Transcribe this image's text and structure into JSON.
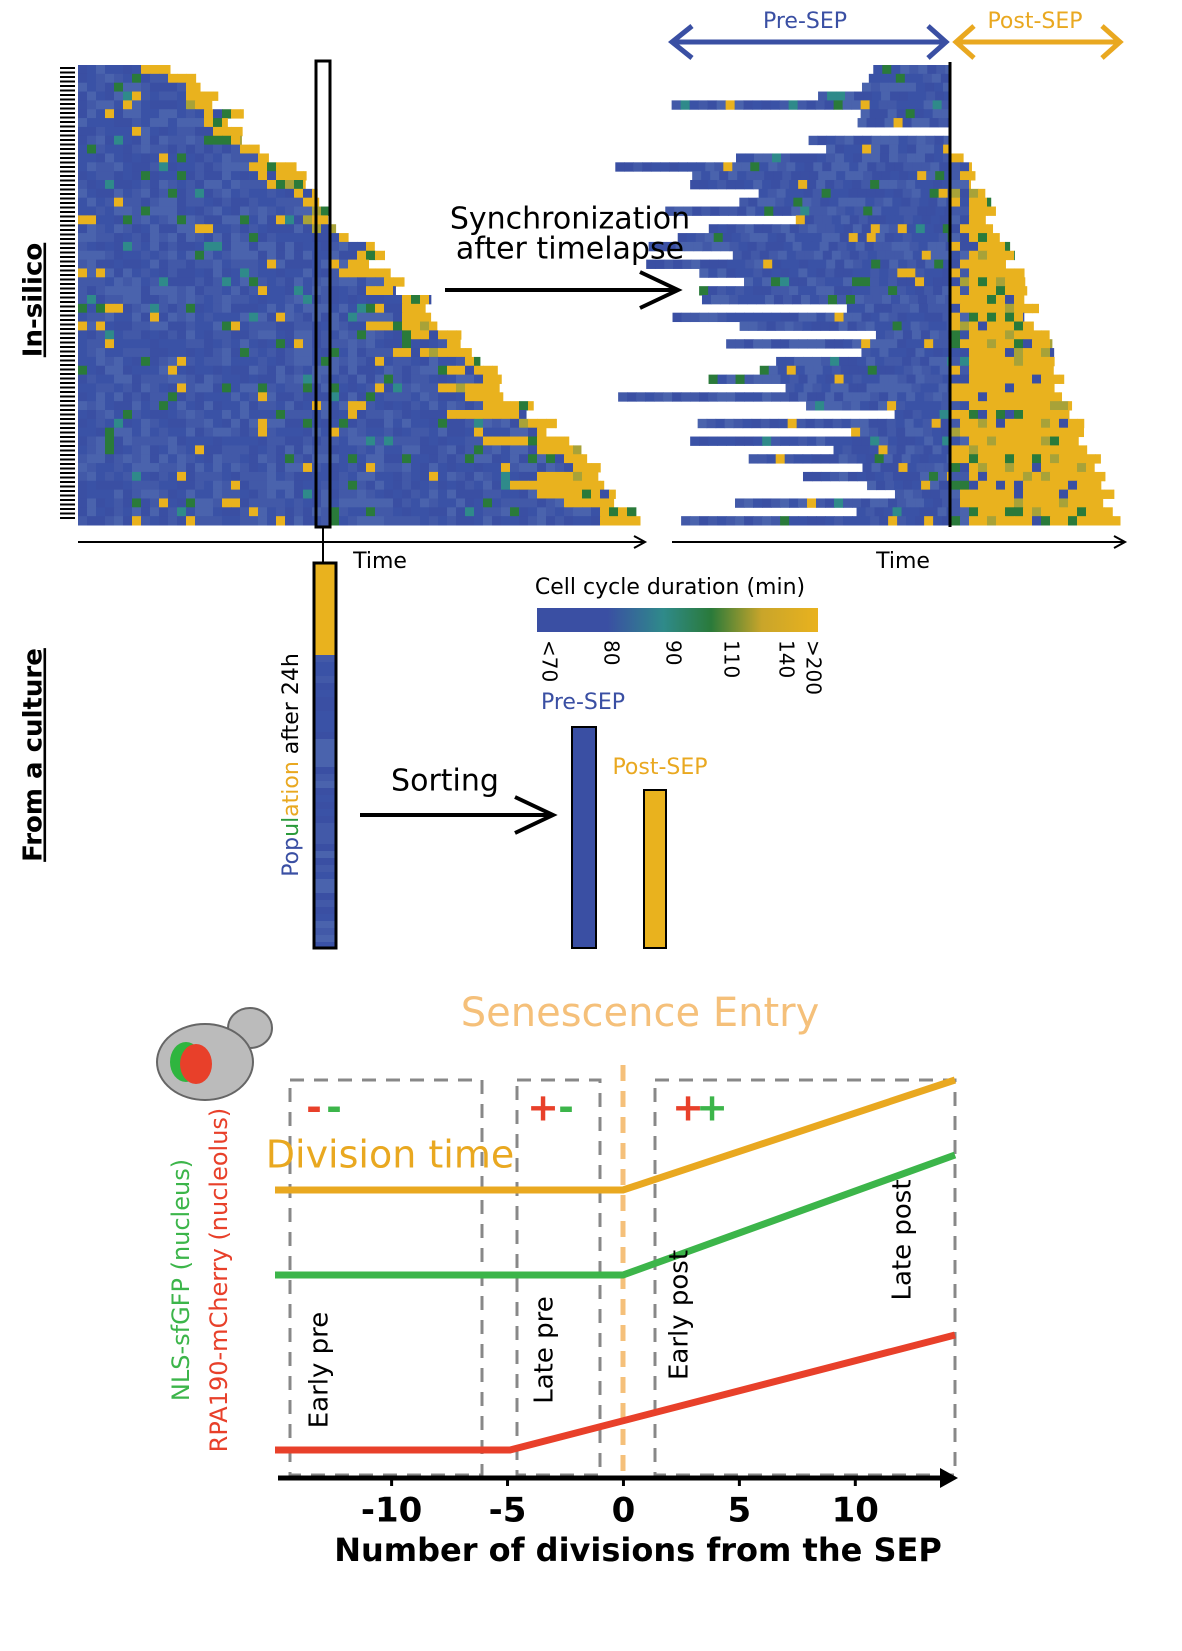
{
  "top": {
    "side_label": "In-silico",
    "left_time": "Time",
    "right_time": "Time",
    "sync_line1": "Synchronization",
    "sync_line2": "after timelapse",
    "pre_sep": "Pre-SEP",
    "post_sep": "Post-SEP"
  },
  "colorbar": {
    "title": "Cell cycle duration (min)",
    "ticks": [
      "<70",
      "80",
      "90",
      "110",
      "140",
      ">200"
    ]
  },
  "culture": {
    "side_label": "From a culture",
    "population": [
      "Pop",
      "ul",
      "ation",
      " after 24h"
    ],
    "sorting": "Sorting",
    "pre_sep": "Pre-SEP",
    "post_sep": "Post-SEP"
  },
  "bottom": {
    "title": "Senescence Entry",
    "division_time": "Division time",
    "y_label_green": "NLS-sfGFP (nucleus)",
    "y_label_red": "RPA190-mCherry (nucleolus)",
    "phases": [
      "Early pre",
      "Late pre",
      "Early post",
      "Late post"
    ],
    "signs": [
      [
        "-",
        "-"
      ],
      [
        "+",
        "-"
      ],
      [
        "+",
        "+"
      ]
    ],
    "x_label": "Number of divisions from the SEP",
    "xlim": [
      -14.9,
      14.3
    ],
    "xticks": [
      -10,
      -5,
      0,
      5,
      10
    ]
  }
}
